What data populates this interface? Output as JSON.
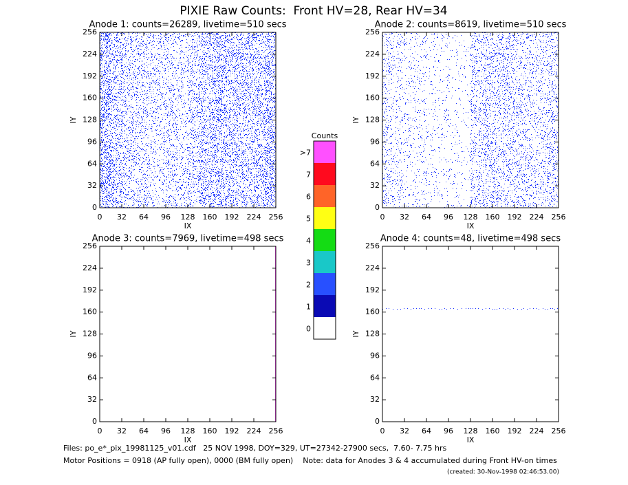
{
  "title": "PIXIE Raw Counts:  Front HV=28, Rear HV=34",
  "panels": [
    {
      "title": "Anode 1: counts=26289, livetime=510 secs",
      "xlabel": "IX",
      "ylabel": "IY",
      "xlim": [
        0,
        256
      ],
      "ylim": [
        0,
        256
      ],
      "xticks": [
        0,
        32,
        64,
        96,
        128,
        160,
        192,
        224,
        256
      ],
      "yticks": [
        0,
        32,
        64,
        96,
        128,
        160,
        192,
        224,
        256
      ],
      "dot_color": "#1c34ff",
      "column_density": [
        0.45,
        0.3,
        0.22,
        0.2,
        0.18,
        0.15,
        0.2,
        0.15,
        0.22,
        0.3,
        0.35,
        0.32,
        0.3,
        0.28,
        0.3,
        0.4
      ]
    },
    {
      "title": "Anode 2: counts=8619, livetime=510 secs",
      "xlabel": "IX",
      "ylabel": "IY",
      "xlim": [
        0,
        256
      ],
      "ylim": [
        0,
        256
      ],
      "xticks": [
        0,
        32,
        64,
        96,
        128,
        160,
        192,
        224,
        256
      ],
      "yticks": [
        0,
        32,
        64,
        96,
        128,
        160,
        192,
        224,
        256
      ],
      "dot_color": "#1c34ff",
      "column_density": [
        0.15,
        0.1,
        0.08,
        0.08,
        0.06,
        0.06,
        0.05,
        0.04,
        0.18,
        0.22,
        0.2,
        0.2,
        0.18,
        0.16,
        0.15,
        0.2
      ]
    },
    {
      "title": "Anode 3: counts=7969, livetime=498 secs",
      "xlabel": "IX",
      "ylabel": "IY",
      "xlim": [
        0,
        256
      ],
      "ylim": [
        0,
        256
      ],
      "xticks": [
        0,
        32,
        64,
        96,
        128,
        160,
        192,
        224,
        256
      ],
      "yticks": [
        0,
        32,
        64,
        96,
        128,
        160,
        192,
        224,
        256
      ],
      "dot_color": "#ff50ff",
      "edge_x": 255
    },
    {
      "title": "Anode 4: counts=48, livetime=498 secs",
      "xlabel": "IX",
      "ylabel": "IY",
      "xlim": [
        0,
        256
      ],
      "ylim": [
        0,
        256
      ],
      "xticks": [
        0,
        32,
        64,
        96,
        128,
        160,
        192,
        224,
        256
      ],
      "yticks": [
        0,
        32,
        64,
        96,
        128,
        160,
        192,
        224,
        256
      ],
      "dot_color": "#1c34ff",
      "row_y": 166
    }
  ],
  "colorbar": {
    "title": "Counts",
    "labels": [
      "0",
      "1",
      "2",
      "3",
      "4",
      "5",
      "6",
      "7",
      ">7"
    ],
    "colors": [
      "#ffffff",
      "#0a0ab4",
      "#2850ff",
      "#19c8c8",
      "#14dc14",
      "#ffff14",
      "#ff6428",
      "#ff0a1e",
      "#ff50ff"
    ]
  },
  "footer": [
    "Files: po_e*_pix_19981125_v01.cdf   25 NOV 1998, DOY=329, UT=27342-27900 secs,  7.60- 7.75 hrs",
    "Motor Positions = 0918 (AP fully open), 0000 (BM fully open)    Note: data for Anodes 3 & 4 accumulated during Front HV-on times",
    "(created: 30-Nov-1998 02:46:53.00)"
  ]
}
